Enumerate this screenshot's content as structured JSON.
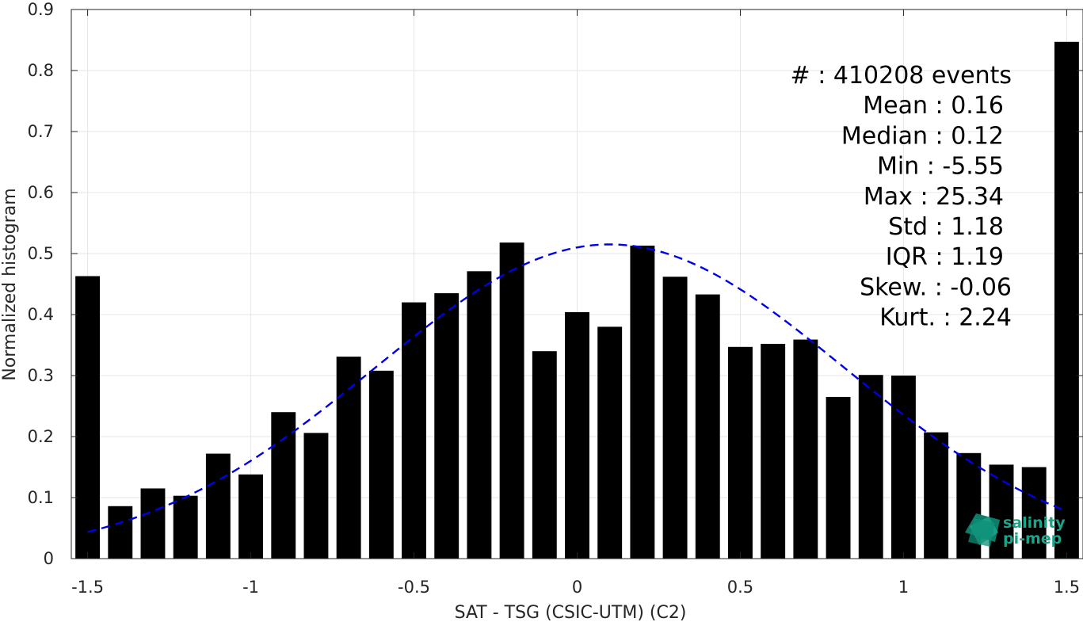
{
  "chart_data": {
    "type": "bar",
    "title": "",
    "xlabel": "SAT - TSG (CSIC-UTM) (C2)",
    "ylabel": "Normalized histogram",
    "xlim": [
      -1.55,
      1.55
    ],
    "ylim": [
      0,
      0.9
    ],
    "grid": true,
    "x_ticks": [
      -1.5,
      -1,
      -0.5,
      0,
      0.5,
      1,
      1.5
    ],
    "x_tick_labels": [
      "-1.5",
      "-1",
      "-0.5",
      "0",
      "0.5",
      "1",
      "1.5"
    ],
    "y_ticks": [
      0,
      0.1,
      0.2,
      0.3,
      0.4,
      0.5,
      0.6,
      0.7,
      0.8,
      0.9
    ],
    "y_tick_labels": [
      "0",
      "0.1",
      "0.2",
      "0.3",
      "0.4",
      "0.5",
      "0.6",
      "0.7",
      "0.8",
      "0.9"
    ],
    "bar_width": 0.075,
    "x": [
      -1.5,
      -1.4,
      -1.3,
      -1.2,
      -1.1,
      -1.0,
      -0.9,
      -0.8,
      -0.7,
      -0.6,
      -0.5,
      -0.4,
      -0.3,
      -0.2,
      -0.1,
      0.0,
      0.1,
      0.2,
      0.3,
      0.4,
      0.5,
      0.6,
      0.7,
      0.8,
      0.9,
      1.0,
      1.1,
      1.2,
      1.3,
      1.4,
      1.5
    ],
    "values": [
      0.463,
      0.086,
      0.115,
      0.103,
      0.172,
      0.138,
      0.24,
      0.206,
      0.331,
      0.308,
      0.42,
      0.435,
      0.471,
      0.518,
      0.34,
      0.404,
      0.38,
      0.513,
      0.462,
      0.433,
      0.347,
      0.352,
      0.359,
      0.265,
      0.301,
      0.3,
      0.207,
      0.173,
      0.154,
      0.15,
      0.847
    ],
    "bar_color": "#000000",
    "fit": {
      "type": "gaussian",
      "mean": 0.1,
      "std": 0.72,
      "peak": 0.515,
      "x_range": [
        -1.5,
        1.5
      ],
      "color": "#0000e6",
      "style": "dashed"
    },
    "stats": [
      "#  : 410208 events",
      "Mean : 0.16",
      "Median : 0.12",
      "Min : -5.55",
      "Max : 25.34",
      "Std : 1.18",
      "IQR : 1.19",
      "Skew. : -0.06",
      "Kurt. : 2.24"
    ]
  },
  "logo": {
    "line1": "salinity",
    "line2": "pi-mep",
    "color": "#1aa58a"
  }
}
